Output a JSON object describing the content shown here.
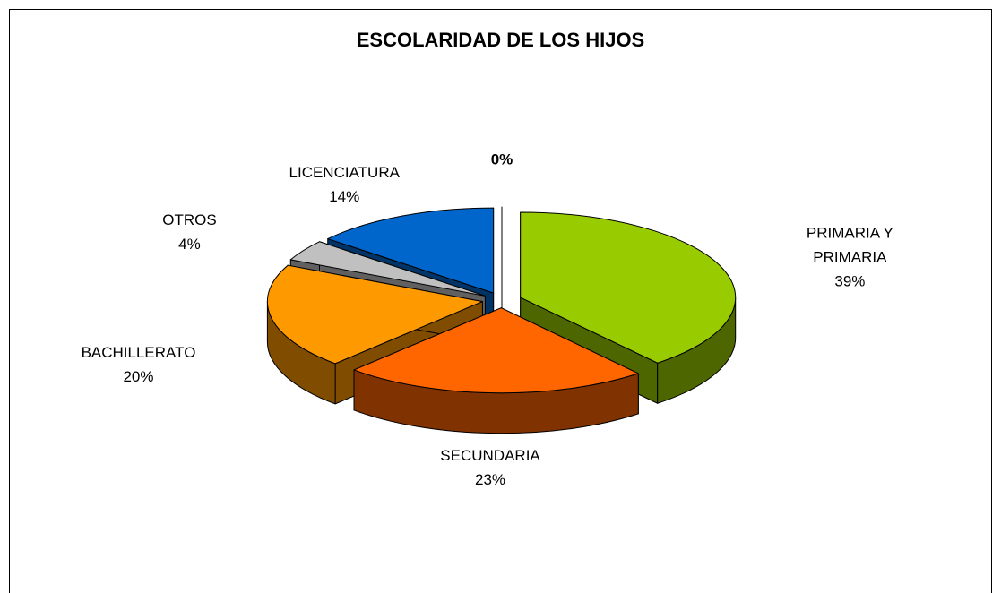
{
  "chart_data": {
    "type": "pie3d",
    "title": "ESCOLARIDAD DE LOS HIJOS",
    "categories": [
      "PRIMARIA Y PRIMARIA",
      "SECUNDARIA",
      "BACHILLERATO",
      "OTROS",
      "LICENCIATURA",
      null
    ],
    "values": [
      39,
      23,
      20,
      4,
      14,
      0
    ],
    "value_labels": [
      "39%",
      "23%",
      "20%",
      "4%",
      "14%",
      "0%"
    ],
    "colors": [
      "#99cc00",
      "#ff6600",
      "#ff9900",
      "#c0c0c0",
      "#0066cc",
      "#ffffff"
    ]
  }
}
